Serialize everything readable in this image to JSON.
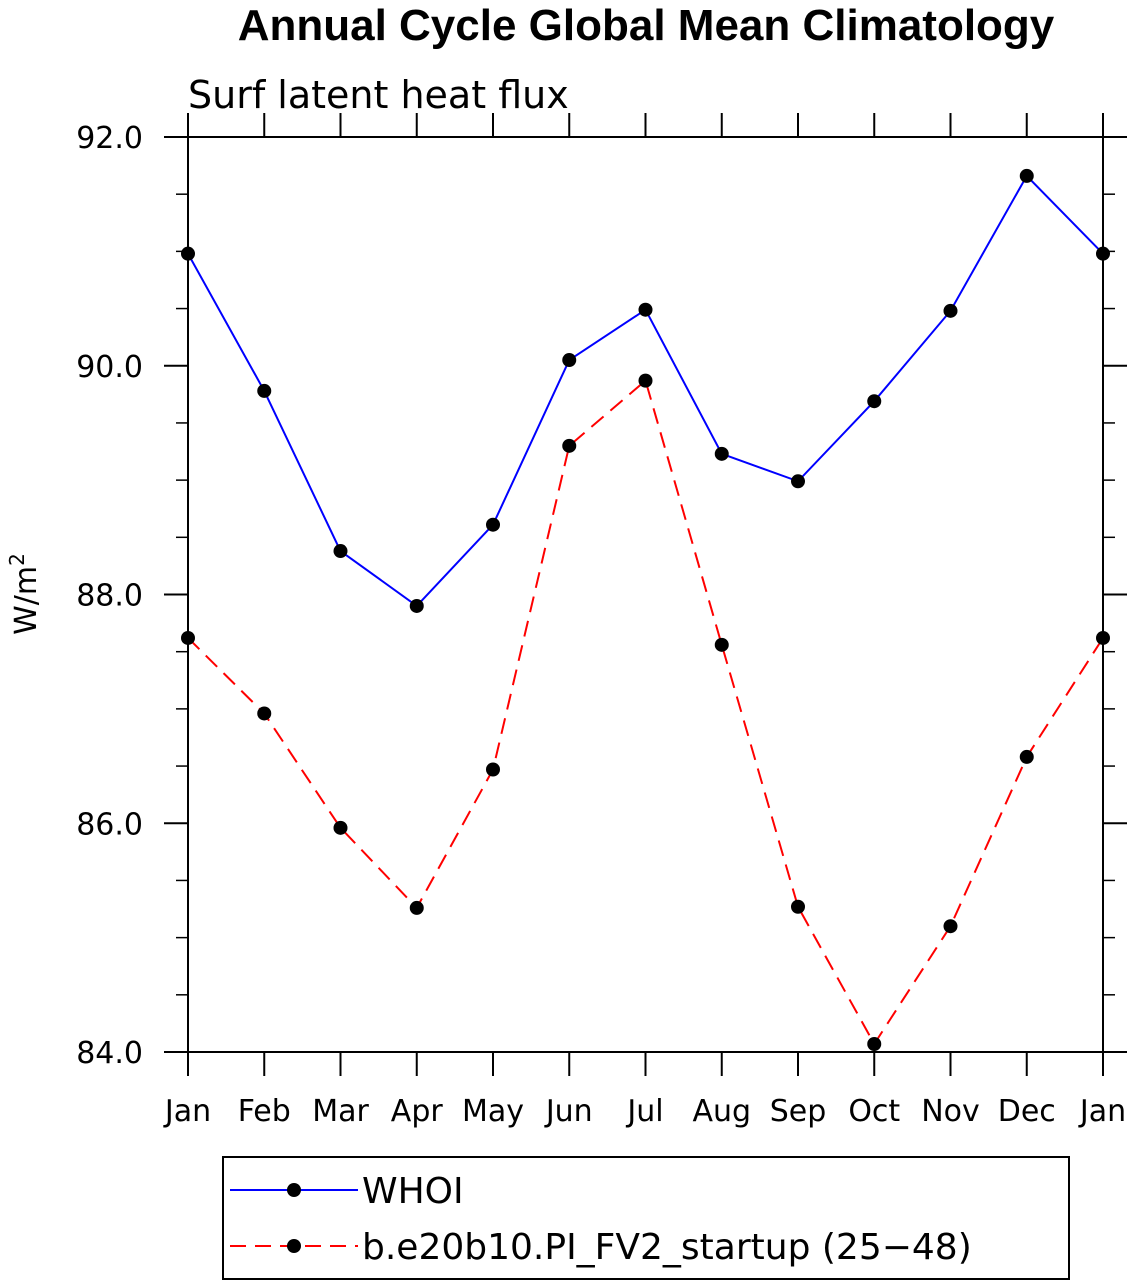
{
  "chart_data": {
    "type": "line",
    "title": "Annual Cycle Global Mean Climatology",
    "subtitle": "Surf latent heat flux",
    "ylabel": "W/m",
    "ylabel_superscript": "2",
    "categories": [
      "Jan",
      "Feb",
      "Mar",
      "Apr",
      "May",
      "Jun",
      "Jul",
      "Aug",
      "Sep",
      "Oct",
      "Nov",
      "Dec",
      "Jan"
    ],
    "ylim": [
      84.0,
      92.0
    ],
    "yticks": [
      84.0,
      86.0,
      88.0,
      90.0,
      92.0
    ],
    "ytick_labels": [
      "84.0",
      "86.0",
      "88.0",
      "90.0",
      "92.0"
    ],
    "grid": false,
    "legend_position": "bottom",
    "series": [
      {
        "name": "WHOI",
        "color": "#0000ff",
        "dash": "solid",
        "marker": "filled-circle",
        "values": [
          90.98,
          89.78,
          88.38,
          87.9,
          88.61,
          90.05,
          90.49,
          89.23,
          88.99,
          89.69,
          90.48,
          91.66,
          90.98
        ]
      },
      {
        "name": "b.e20b10.PI_FV2_startup (25−48)",
        "color": "#ff0000",
        "dash": "dashed",
        "marker": "filled-circle",
        "values": [
          87.62,
          86.96,
          85.96,
          85.26,
          86.47,
          89.3,
          89.87,
          87.56,
          85.27,
          84.07,
          85.1,
          86.58,
          87.62
        ]
      }
    ]
  }
}
